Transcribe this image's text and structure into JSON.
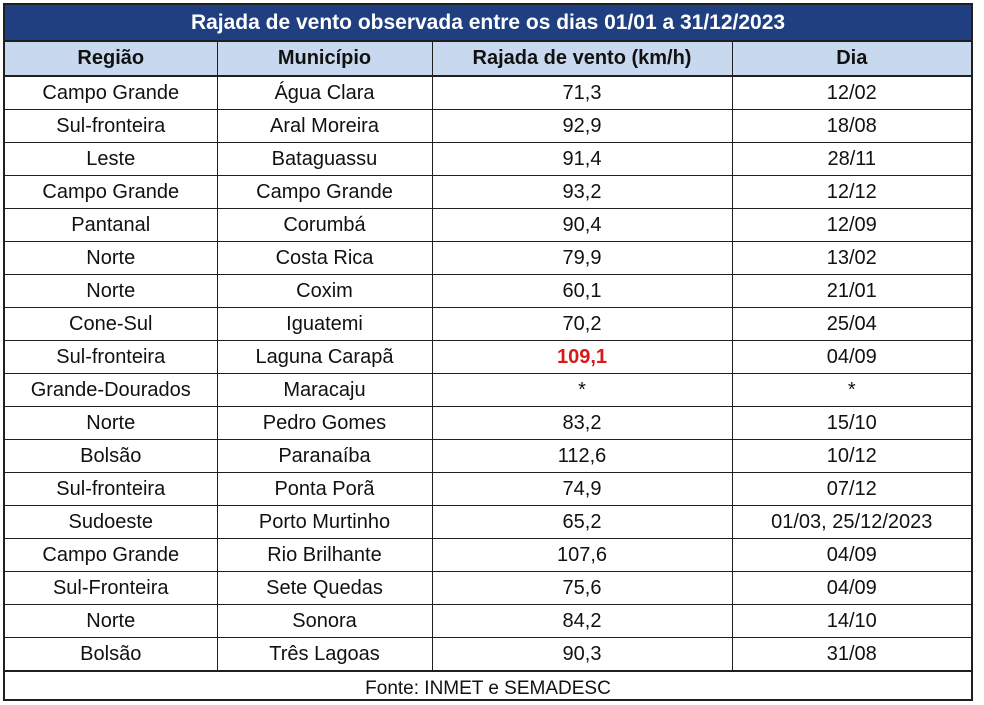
{
  "title": "Rajada de vento observada entre os dias 01/01 a 31/12/2023",
  "headers": {
    "regiao": "Região",
    "municipio": "Município",
    "rajada": "Rajada de vento (km/h)",
    "dia": "Dia"
  },
  "rows": [
    {
      "regiao": "Campo Grande",
      "municipio": "Água Clara",
      "rajada": "71,3",
      "dia": "12/02"
    },
    {
      "regiao": "Sul-fronteira",
      "municipio": "Aral Moreira",
      "rajada": "92,9",
      "dia": "18/08"
    },
    {
      "regiao": "Leste",
      "municipio": "Bataguassu",
      "rajada": "91,4",
      "dia": "28/11"
    },
    {
      "regiao": "Campo Grande",
      "municipio": "Campo Grande",
      "rajada": "93,2",
      "dia": "12/12"
    },
    {
      "regiao": "Pantanal",
      "municipio": "Corumbá",
      "rajada": "90,4",
      "dia": "12/09"
    },
    {
      "regiao": "Norte",
      "municipio": "Costa Rica",
      "rajada": "79,9",
      "dia": "13/02"
    },
    {
      "regiao": "Norte",
      "municipio": "Coxim",
      "rajada": "60,1",
      "dia": "21/01"
    },
    {
      "regiao": "Cone-Sul",
      "municipio": "Iguatemi",
      "rajada": "70,2",
      "dia": "25/04"
    },
    {
      "regiao": "Sul-fronteira",
      "municipio": "Laguna Carapã",
      "rajada": "109,1",
      "dia": "04/09"
    },
    {
      "regiao": "Grande-Dourados",
      "municipio": "Maracaju",
      "rajada": "*",
      "dia": "*"
    },
    {
      "regiao": "Norte",
      "municipio": "Pedro Gomes",
      "rajada": "83,2",
      "dia": "15/10"
    },
    {
      "regiao": "Bolsão",
      "municipio": "Paranaíba",
      "rajada": "112,6",
      "dia": "10/12"
    },
    {
      "regiao": "Sul-fronteira",
      "municipio": "Ponta Porã",
      "rajada": "74,9",
      "dia": "07/12"
    },
    {
      "regiao": "Sudoeste",
      "municipio": "Porto Murtinho",
      "rajada": "65,2",
      "dia": "01/03, 25/12/2023"
    },
    {
      "regiao": "Campo Grande",
      "municipio": "Rio Brilhante",
      "rajada": "107,6",
      "dia": "04/09"
    },
    {
      "regiao": "Sul-Fronteira",
      "municipio": "Sete Quedas",
      "rajada": "75,6",
      "dia": "04/09"
    },
    {
      "regiao": "Norte",
      "municipio": "Sonora",
      "rajada": "84,2",
      "dia": "14/10"
    },
    {
      "regiao": "Bolsão",
      "municipio": "Três Lagoas",
      "rajada": "90,3",
      "dia": "31/08"
    }
  ],
  "highlighted_municipio": "Laguna Carapã",
  "colors": {
    "title_background": "#1f3f80",
    "header_background": "#c8d9ef",
    "highlight_text": "#d71a1a"
  },
  "footer": "Fonte: INMET e SEMADESC"
}
